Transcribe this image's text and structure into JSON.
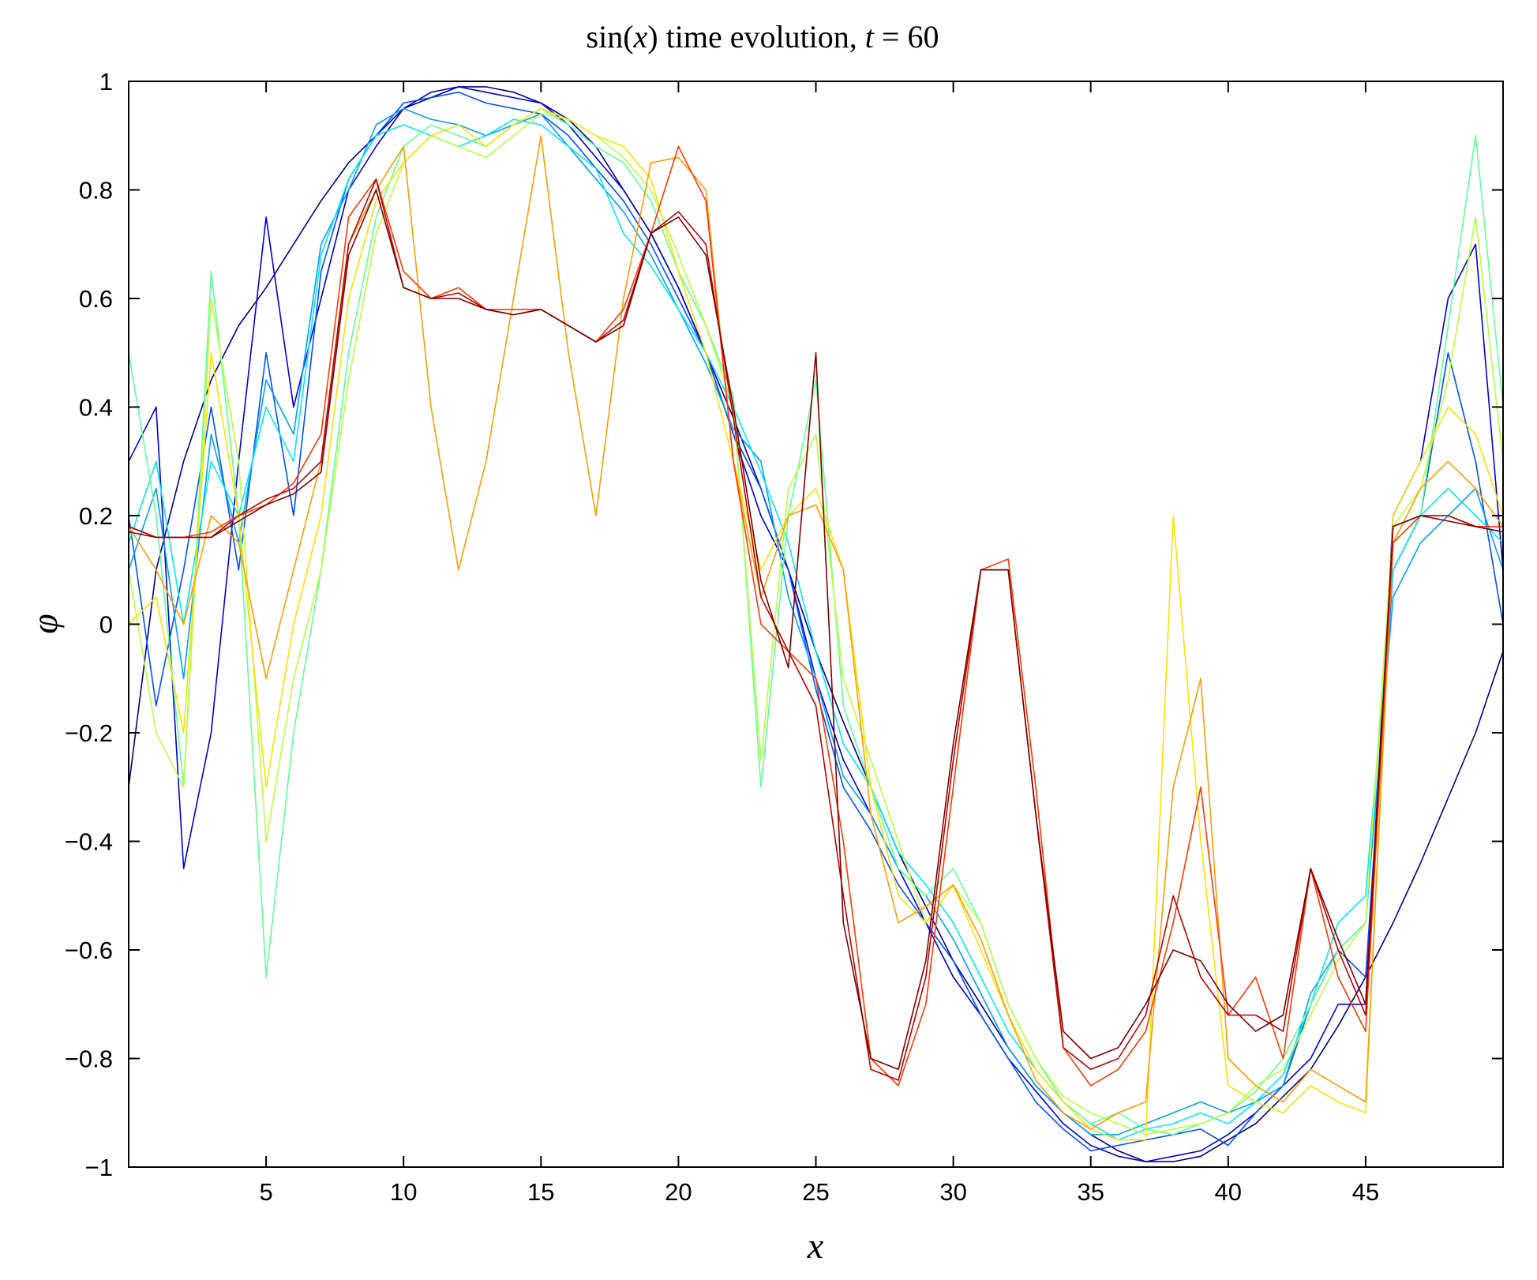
{
  "chart_data": {
    "type": "line",
    "title": {
      "prefix": "sin(",
      "var": "x",
      "mid": ") time evolution, ",
      "tvar": "t",
      "suffix": " = 60"
    },
    "xlabel": "x",
    "ylabel": "φ",
    "xlim": [
      0,
      50
    ],
    "ylim": [
      -1,
      1
    ],
    "grid": false,
    "legend": "none",
    "colormap": "jet",
    "xticks": [
      {
        "v": 5,
        "label": "5"
      },
      {
        "v": 10,
        "label": "10"
      },
      {
        "v": 15,
        "label": "15"
      },
      {
        "v": 20,
        "label": "20"
      },
      {
        "v": 25,
        "label": "25"
      },
      {
        "v": 30,
        "label": "30"
      },
      {
        "v": 35,
        "label": "35"
      },
      {
        "v": 40,
        "label": "40"
      },
      {
        "v": 45,
        "label": "45"
      }
    ],
    "yticks": [
      {
        "v": -1,
        "label": "−1"
      },
      {
        "v": -0.8,
        "label": "−0.8"
      },
      {
        "v": -0.6,
        "label": "−0.6"
      },
      {
        "v": -0.4,
        "label": "−0.4"
      },
      {
        "v": -0.2,
        "label": "−0.2"
      },
      {
        "v": 0,
        "label": "0"
      },
      {
        "v": 0.2,
        "label": "0.2"
      },
      {
        "v": 0.4,
        "label": "0.4"
      },
      {
        "v": 0.6,
        "label": "0.6"
      },
      {
        "v": 0.8,
        "label": "0.8"
      },
      {
        "v": 1,
        "label": "1"
      }
    ],
    "x": [
      0,
      1,
      2,
      3,
      4,
      5,
      6,
      7,
      8,
      9,
      10,
      11,
      12,
      13,
      14,
      15,
      16,
      17,
      18,
      19,
      20,
      21,
      22,
      23,
      24,
      25,
      26,
      27,
      28,
      29,
      30,
      31,
      32,
      33,
      34,
      35,
      36,
      37,
      38,
      39,
      40,
      41,
      42,
      43,
      44,
      45,
      46,
      47,
      48,
      49,
      50
    ],
    "series": [
      {
        "color": "#00008f",
        "values": [
          -0.3,
          0.1,
          0.3,
          0.45,
          0.55,
          0.62,
          0.7,
          0.78,
          0.85,
          0.9,
          0.95,
          0.97,
          0.99,
          0.99,
          0.98,
          0.96,
          0.93,
          0.88,
          0.8,
          0.72,
          0.62,
          0.5,
          0.38,
          0.25,
          0.1,
          -0.05,
          -0.18,
          -0.3,
          -0.42,
          -0.52,
          -0.62,
          -0.7,
          -0.78,
          -0.85,
          -0.9,
          -0.94,
          -0.97,
          -0.99,
          -0.99,
          -0.98,
          -0.95,
          -0.92,
          -0.87,
          -0.82,
          -0.74,
          -0.65,
          -0.55,
          -0.44,
          -0.32,
          -0.2,
          -0.05
        ]
      },
      {
        "color": "#0000d8",
        "values": [
          0.3,
          0.4,
          -0.45,
          -0.2,
          0.3,
          0.75,
          0.4,
          0.6,
          0.8,
          0.88,
          0.95,
          0.98,
          0.99,
          0.98,
          0.97,
          0.96,
          0.92,
          0.86,
          0.8,
          0.72,
          0.62,
          0.5,
          0.35,
          0.2,
          0.1,
          -0.1,
          -0.25,
          -0.35,
          -0.45,
          -0.55,
          -0.65,
          -0.72,
          -0.8,
          -0.86,
          -0.92,
          -0.96,
          -0.98,
          -0.99,
          -0.98,
          -0.97,
          -0.94,
          -0.9,
          -0.85,
          -0.8,
          -0.7,
          -0.7,
          0.2,
          0.3,
          0.6,
          0.7,
          0.1
        ]
      },
      {
        "color": "#0050ff",
        "values": [
          0.2,
          -0.15,
          0.1,
          0.4,
          0.1,
          0.5,
          0.2,
          0.65,
          0.82,
          0.9,
          0.96,
          0.97,
          0.98,
          0.96,
          0.95,
          0.94,
          0.9,
          0.84,
          0.78,
          0.7,
          0.6,
          0.5,
          0.35,
          0.25,
          0.1,
          -0.12,
          -0.3,
          -0.38,
          -0.48,
          -0.55,
          -0.62,
          -0.72,
          -0.8,
          -0.88,
          -0.93,
          -0.97,
          -0.96,
          -0.95,
          -0.94,
          -0.93,
          -0.96,
          -0.9,
          -0.85,
          -0.7,
          -0.6,
          -0.65,
          0.1,
          0.2,
          0.5,
          0.3,
          0.0
        ]
      },
      {
        "color": "#00a0ff",
        "values": [
          0.1,
          0.25,
          -0.1,
          0.35,
          0.15,
          0.45,
          0.35,
          0.7,
          0.8,
          0.92,
          0.95,
          0.93,
          0.92,
          0.9,
          0.92,
          0.94,
          0.88,
          0.82,
          0.76,
          0.68,
          0.58,
          0.48,
          0.36,
          0.3,
          0.05,
          -0.1,
          -0.28,
          -0.35,
          -0.45,
          -0.5,
          -0.58,
          -0.68,
          -0.78,
          -0.85,
          -0.9,
          -0.94,
          -0.94,
          -0.92,
          -0.9,
          -0.88,
          -0.9,
          -0.88,
          -0.85,
          -0.68,
          -0.6,
          -0.55,
          0.05,
          0.15,
          0.2,
          0.25,
          0.1
        ]
      },
      {
        "color": "#00e8ff",
        "values": [
          0.15,
          0.3,
          0.0,
          0.3,
          0.2,
          0.4,
          0.3,
          0.68,
          0.82,
          0.9,
          0.92,
          0.9,
          0.88,
          0.9,
          0.93,
          0.92,
          0.88,
          0.84,
          0.72,
          0.66,
          0.58,
          0.5,
          0.4,
          0.28,
          0.15,
          -0.05,
          -0.22,
          -0.3,
          -0.42,
          -0.48,
          -0.55,
          -0.65,
          -0.75,
          -0.82,
          -0.88,
          -0.92,
          -0.95,
          -0.93,
          -0.92,
          -0.9,
          -0.92,
          -0.88,
          -0.83,
          -0.7,
          -0.55,
          -0.5,
          0.1,
          0.2,
          0.25,
          0.2,
          0.15
        ]
      },
      {
        "color": "#60ff98",
        "values": [
          0.5,
          0.2,
          -0.3,
          0.65,
          0.2,
          -0.65,
          -0.2,
          0.1,
          0.5,
          0.75,
          0.88,
          0.92,
          0.9,
          0.88,
          0.92,
          0.95,
          0.92,
          0.88,
          0.85,
          0.78,
          0.65,
          0.55,
          0.42,
          -0.3,
          0.2,
          0.45,
          -0.15,
          -0.3,
          -0.45,
          -0.5,
          -0.45,
          -0.55,
          -0.7,
          -0.8,
          -0.88,
          -0.92,
          -0.9,
          -0.93,
          -0.94,
          -0.92,
          -0.9,
          -0.86,
          -0.8,
          -0.7,
          -0.6,
          -0.55,
          0.15,
          0.2,
          0.55,
          0.9,
          0.4
        ]
      },
      {
        "color": "#b8ff40",
        "values": [
          0.1,
          -0.2,
          -0.3,
          0.6,
          0.3,
          -0.4,
          -0.1,
          0.1,
          0.45,
          0.72,
          0.85,
          0.9,
          0.88,
          0.86,
          0.9,
          0.94,
          0.93,
          0.9,
          0.86,
          0.8,
          0.68,
          0.55,
          0.4,
          -0.25,
          0.25,
          0.35,
          -0.1,
          -0.25,
          -0.4,
          -0.55,
          -0.48,
          -0.55,
          -0.7,
          -0.8,
          -0.87,
          -0.9,
          -0.92,
          -0.94,
          -0.93,
          -0.92,
          -0.9,
          -0.85,
          -0.82,
          -0.72,
          -0.62,
          -0.55,
          0.18,
          0.25,
          0.45,
          0.75,
          0.3
        ]
      },
      {
        "color": "#ffe000",
        "values": [
          0.0,
          0.05,
          -0.2,
          0.5,
          0.2,
          -0.3,
          0.0,
          0.2,
          0.6,
          0.78,
          0.85,
          0.9,
          0.92,
          0.88,
          0.92,
          0.95,
          0.93,
          0.9,
          0.88,
          0.82,
          0.65,
          0.5,
          0.3,
          0.1,
          0.2,
          0.25,
          0.1,
          -0.3,
          -0.5,
          -0.55,
          -0.48,
          -0.6,
          -0.72,
          -0.82,
          -0.88,
          -0.93,
          -0.95,
          -0.95,
          0.2,
          -0.4,
          -0.85,
          -0.88,
          -0.9,
          -0.85,
          -0.88,
          -0.9,
          0.2,
          0.3,
          0.4,
          0.35,
          0.2
        ]
      },
      {
        "color": "#ff9c00",
        "values": [
          0.18,
          0.1,
          0.0,
          0.2,
          0.15,
          -0.1,
          0.1,
          0.3,
          0.7,
          0.8,
          0.88,
          0.4,
          0.1,
          0.3,
          0.6,
          0.9,
          0.5,
          0.2,
          0.6,
          0.85,
          0.86,
          0.8,
          0.3,
          0.05,
          0.2,
          0.22,
          0.1,
          -0.35,
          -0.55,
          -0.52,
          -0.48,
          -0.58,
          -0.72,
          -0.84,
          -0.9,
          -0.93,
          -0.9,
          -0.88,
          -0.3,
          -0.1,
          -0.8,
          -0.85,
          -0.88,
          -0.82,
          -0.85,
          -0.88,
          0.15,
          0.25,
          0.3,
          0.25,
          0.18
        ]
      },
      {
        "color": "#ff3800",
        "values": [
          0.18,
          0.16,
          0.16,
          0.17,
          0.2,
          0.22,
          0.26,
          0.35,
          0.75,
          0.82,
          0.65,
          0.6,
          0.62,
          0.58,
          0.58,
          0.58,
          0.55,
          0.52,
          0.58,
          0.72,
          0.88,
          0.78,
          0.3,
          0.0,
          -0.05,
          -0.1,
          -0.4,
          -0.8,
          -0.85,
          -0.7,
          -0.3,
          0.1,
          0.12,
          -0.3,
          -0.78,
          -0.85,
          -0.82,
          -0.75,
          -0.55,
          -0.3,
          -0.72,
          -0.65,
          -0.8,
          -0.45,
          -0.65,
          -0.75,
          0.15,
          0.2,
          0.2,
          0.18,
          0.18
        ]
      },
      {
        "color": "#c00000",
        "values": [
          0.18,
          0.16,
          0.16,
          0.16,
          0.2,
          0.23,
          0.25,
          0.3,
          0.7,
          0.82,
          0.62,
          0.6,
          0.61,
          0.58,
          0.57,
          0.58,
          0.55,
          0.52,
          0.56,
          0.72,
          0.76,
          0.7,
          0.38,
          0.05,
          -0.05,
          -0.15,
          -0.5,
          -0.82,
          -0.84,
          -0.65,
          -0.25,
          0.1,
          0.1,
          -0.35,
          -0.78,
          -0.82,
          -0.8,
          -0.72,
          -0.5,
          -0.65,
          -0.72,
          -0.72,
          -0.75,
          -0.45,
          -0.6,
          -0.72,
          0.18,
          0.2,
          0.2,
          0.18,
          0.17
        ]
      },
      {
        "color": "#800000",
        "values": [
          0.17,
          0.16,
          0.16,
          0.16,
          0.19,
          0.22,
          0.24,
          0.28,
          0.68,
          0.8,
          0.62,
          0.6,
          0.6,
          0.58,
          0.57,
          0.58,
          0.55,
          0.52,
          0.55,
          0.72,
          0.75,
          0.68,
          0.4,
          0.08,
          -0.08,
          0.5,
          -0.55,
          -0.8,
          -0.82,
          -0.62,
          -0.22,
          0.1,
          0.1,
          -0.35,
          -0.75,
          -0.8,
          -0.78,
          -0.7,
          -0.6,
          -0.62,
          -0.7,
          -0.75,
          -0.72,
          -0.45,
          -0.58,
          -0.7,
          0.18,
          0.2,
          0.19,
          0.18,
          0.17
        ]
      }
    ]
  }
}
